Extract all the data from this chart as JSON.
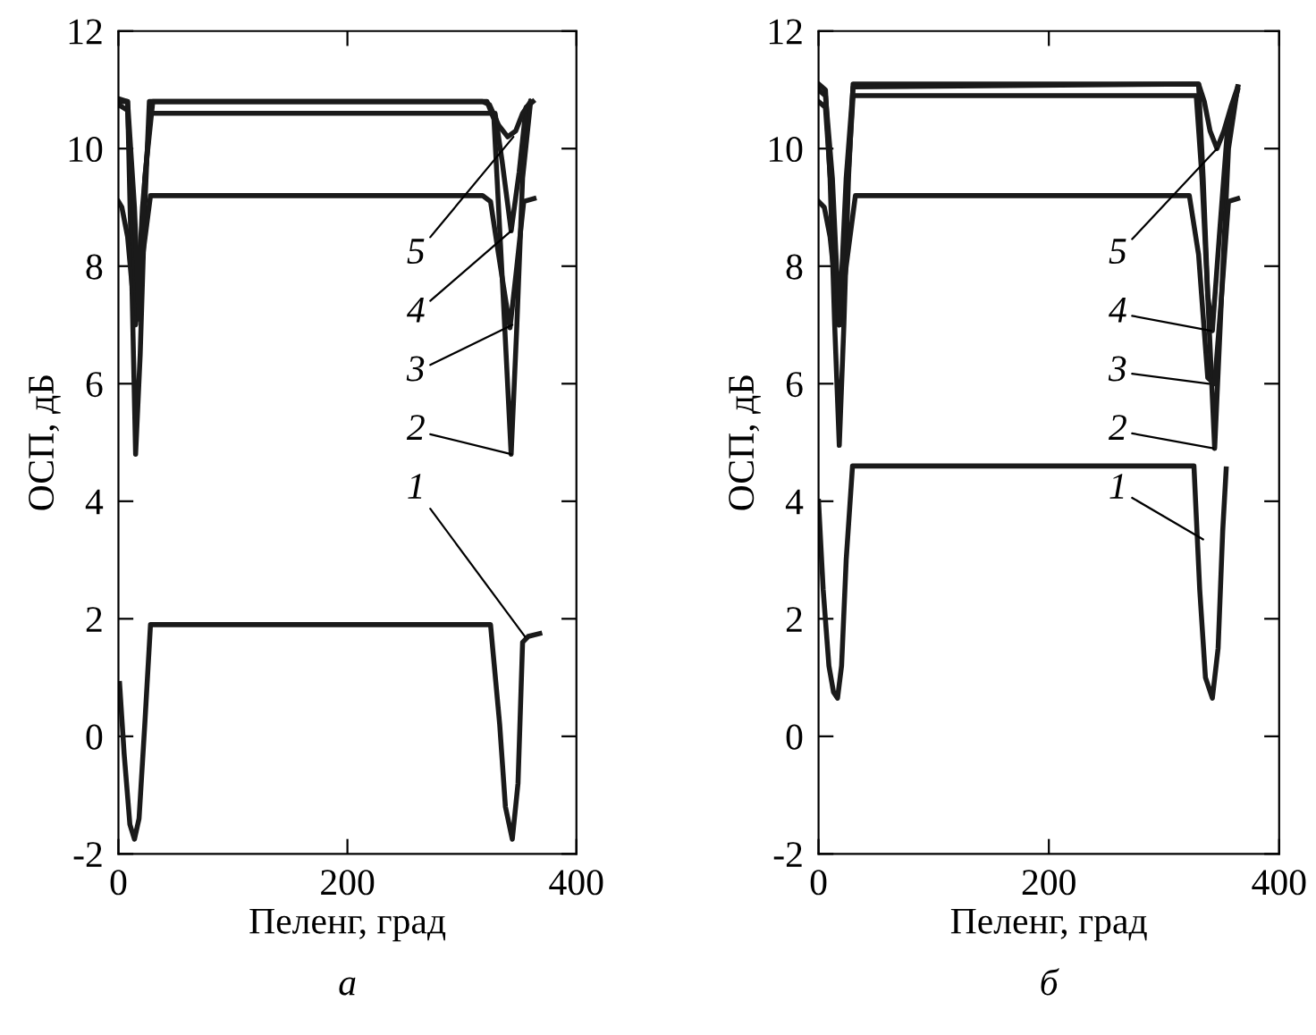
{
  "chart_data": [
    {
      "type": "line",
      "title": "а",
      "xlabel": "Пеленг, град",
      "ylabel": "ОСП, дБ",
      "xlim": [
        0,
        400
      ],
      "ylim": [
        -2,
        12
      ],
      "xticks": [
        0,
        200,
        400
      ],
      "yticks": [
        {
          "value": -2,
          "label": "-2"
        },
        0,
        2,
        4,
        6,
        8,
        10,
        12
      ],
      "grid": false,
      "legend": false,
      "marker": "none",
      "line_style": "solid",
      "series": [
        {
          "color": "#1a1a1a",
          "x": [
            1,
            5,
            10,
            14,
            18,
            23,
            28,
            325,
            333,
            338,
            344,
            349,
            353,
            358,
            368
          ],
          "values": [
            0.9,
            -0.3,
            -1.5,
            -1.75,
            -1.4,
            0.2,
            1.9,
            1.9,
            0.2,
            -1.2,
            -1.75,
            -0.8,
            1.6,
            1.7,
            1.75
          ]
        },
        {
          "color": "#1a1a1a",
          "x": [
            0,
            8,
            12,
            15,
            19,
            23,
            27,
            316,
            322,
            328,
            336,
            343,
            348,
            353,
            360
          ],
          "values": [
            10.8,
            10.8,
            7.5,
            4.8,
            6.5,
            9,
            10.8,
            10.8,
            10.8,
            10.5,
            7.5,
            4.8,
            7,
            9.5,
            10.8
          ]
        },
        {
          "color": "#1a1a1a",
          "x": [
            0,
            3,
            8,
            15,
            22,
            28,
            318,
            325,
            332,
            342,
            348,
            354,
            363
          ],
          "values": [
            9.1,
            9.0,
            8.5,
            7.0,
            8.3,
            9.2,
            9.2,
            9.1,
            8.2,
            6.95,
            8.0,
            9.1,
            9.15
          ]
        },
        {
          "color": "#1a1a1a",
          "x": [
            0,
            8,
            12,
            16,
            21,
            28,
            329,
            335,
            343,
            350,
            356,
            362
          ],
          "values": [
            10.75,
            10.65,
            9,
            7.2,
            9,
            10.6,
            10.6,
            9.8,
            8.6,
            9.6,
            10.7,
            10.8
          ]
        },
        {
          "color": "#1a1a1a",
          "x": [
            0,
            8,
            14,
            18,
            23,
            30,
            318,
            324,
            332,
            340,
            347,
            353,
            360
          ],
          "values": [
            10.85,
            10.8,
            9,
            7.1,
            9.5,
            10.8,
            10.8,
            10.75,
            10.4,
            10.2,
            10.3,
            10.6,
            10.8
          ]
        }
      ],
      "annotations": [
        {
          "text": "5",
          "x": 345,
          "y": 10.2
        },
        {
          "text": "4",
          "x": 343,
          "y": 8.6
        },
        {
          "text": "3",
          "x": 344,
          "y": 7.0
        },
        {
          "text": "2",
          "x": 343,
          "y": 4.8
        },
        {
          "text": "1",
          "x": 355,
          "y": 1.7
        }
      ]
    },
    {
      "type": "line",
      "title": "б",
      "xlabel": "Пеленг, град",
      "ylabel": "ОСП, дБ",
      "xlim": [
        0,
        400
      ],
      "ylim": [
        -2,
        12
      ],
      "xticks": [
        0,
        200,
        400
      ],
      "yticks": [
        {
          "value": -2,
          "label": "-2"
        },
        0,
        2,
        4,
        6,
        8,
        10,
        12
      ],
      "grid": false,
      "legend": false,
      "marker": "none",
      "line_style": "solid",
      "series": [
        {
          "color": "#1a1a1a",
          "x": [
            0,
            4,
            9,
            13,
            16.5,
            20,
            24,
            29.5,
            326,
            331,
            336,
            342,
            347,
            351,
            354
          ],
          "values": [
            4.0,
            2.5,
            1.2,
            0.75,
            0.65,
            1.2,
            3,
            4.6,
            4.6,
            2.5,
            1.0,
            0.65,
            1.5,
            3.5,
            4.55
          ]
        },
        {
          "color": "#1a1a1a",
          "x": [
            0,
            6,
            10,
            14,
            18,
            22,
            26,
            30,
            330,
            334,
            338,
            344,
            350,
            356,
            364
          ],
          "values": [
            11.1,
            11.0,
            9.5,
            7,
            4.95,
            7,
            9.5,
            11.1,
            11.1,
            9.5,
            7.5,
            4.9,
            7.5,
            10,
            11.05
          ]
        },
        {
          "color": "#1a1a1a",
          "x": [
            0,
            5,
            10,
            18,
            24,
            32,
            322,
            330,
            338,
            344,
            350,
            356,
            364
          ],
          "values": [
            9.1,
            9.0,
            8.5,
            7.0,
            8.0,
            9.2,
            9.2,
            8.2,
            6.1,
            6.0,
            7.5,
            9.1,
            9.15
          ]
        },
        {
          "color": "#1a1a1a",
          "x": [
            0,
            6,
            12,
            18,
            24,
            30,
            328,
            333,
            338,
            342,
            348,
            355,
            364
          ],
          "values": [
            10.8,
            10.7,
            9,
            7.0,
            9,
            10.9,
            10.9,
            9.5,
            7.5,
            6.9,
            8.5,
            10.3,
            11.0
          ]
        },
        {
          "color": "#1a1a1a",
          "x": [
            0,
            6,
            12,
            18,
            24,
            30,
            330,
            335,
            340,
            346,
            352,
            358,
            364
          ],
          "values": [
            11.0,
            10.9,
            9.5,
            7.0,
            9.5,
            11.05,
            11.1,
            10.8,
            10.3,
            10.0,
            10.3,
            10.7,
            11.05
          ]
        }
      ],
      "annotations": [
        {
          "text": "5",
          "x": 346,
          "y": 10.0
        },
        {
          "text": "4",
          "x": 341,
          "y": 6.9
        },
        {
          "text": "3",
          "x": 339,
          "y": 6.0
        },
        {
          "text": "2",
          "x": 343,
          "y": 4.9
        },
        {
          "text": "1",
          "x": 334,
          "y": 3.35
        }
      ]
    }
  ]
}
